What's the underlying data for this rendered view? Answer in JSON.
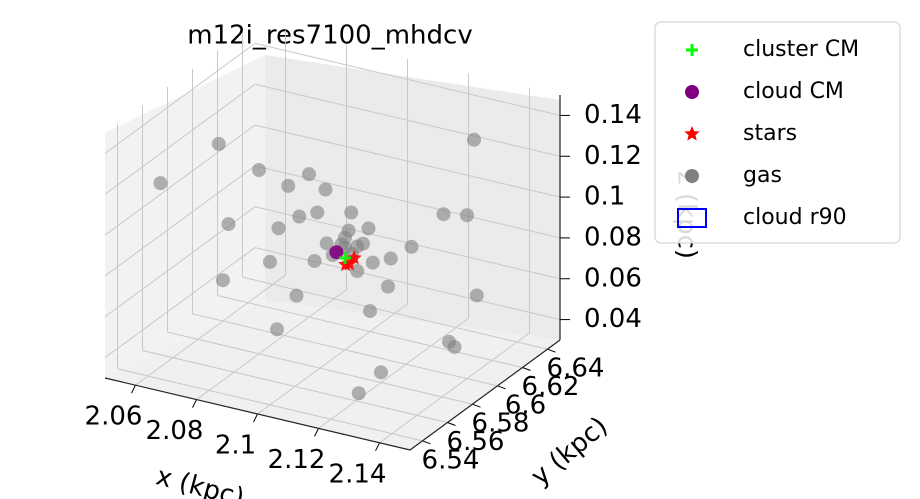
{
  "chart_data": {
    "type": "scatter3d",
    "title": "m12i_res7100_mhdcv",
    "xlabel": "x (kpc)",
    "ylabel": "y (kpc)",
    "zlabel": "z (kpc)",
    "xlim": [
      2.05,
      2.15
    ],
    "ylim": [
      6.53,
      6.65
    ],
    "zlim": [
      0.03,
      0.15
    ],
    "xticks": [
      2.06,
      2.08,
      2.1,
      2.12,
      2.14
    ],
    "yticks": [
      6.54,
      6.56,
      6.58,
      6.6,
      6.62,
      6.64
    ],
    "zticks": [
      0.04,
      0.06,
      0.08,
      0.1,
      0.12,
      0.14
    ],
    "grid": true,
    "legend": "upper right",
    "series": [
      {
        "name": "cluster CM",
        "color": "#00ff00",
        "marker": "plus",
        "x": [
          2.1
        ],
        "y": [
          6.6
        ],
        "z": [
          0.075
        ]
      },
      {
        "name": "cloud CM",
        "color": "#800080",
        "marker": "circle",
        "x": [
          2.098
        ],
        "y": [
          6.598
        ],
        "z": [
          0.078
        ]
      },
      {
        "name": "stars",
        "color": "#ff0000",
        "marker": "star",
        "x": [
          2.101,
          2.103,
          2.099
        ],
        "y": [
          6.601,
          6.6,
          6.603
        ],
        "z": [
          0.072,
          0.076,
          0.07
        ]
      },
      {
        "name": "gas",
        "color": "#808080",
        "marker": "circle",
        "x": [
          2.06,
          2.07,
          2.08,
          2.09,
          2.1,
          2.11,
          2.12,
          2.13,
          2.14,
          2.065,
          2.075,
          2.085,
          2.095,
          2.105,
          2.115,
          2.125,
          2.135,
          2.06,
          2.08,
          2.1,
          2.12,
          2.14,
          2.07,
          2.09,
          2.11,
          2.13,
          2.1,
          2.102,
          2.098,
          2.104,
          2.096,
          2.1,
          2.106,
          2.094,
          2.1,
          2.12,
          2.08,
          2.09,
          2.11,
          2.13
        ],
        "y": [
          6.55,
          6.58,
          6.62,
          6.6,
          6.6,
          6.61,
          6.57,
          6.63,
          6.59,
          6.64,
          6.56,
          6.6,
          6.59,
          6.61,
          6.6,
          6.55,
          6.62,
          6.6,
          6.58,
          6.54,
          6.63,
          6.6,
          6.62,
          6.57,
          6.59,
          6.61,
          6.6,
          6.598,
          6.602,
          6.6,
          6.6,
          6.605,
          6.595,
          6.6,
          6.62,
          6.58,
          6.61,
          6.63,
          6.56,
          6.58
        ],
        "z": [
          0.12,
          0.09,
          0.1,
          0.07,
          0.08,
          0.06,
          0.11,
          0.13,
          0.05,
          0.08,
          0.14,
          0.09,
          0.1,
          0.07,
          0.08,
          0.04,
          0.06,
          0.05,
          0.12,
          0.1,
          0.09,
          0.11,
          0.07,
          0.05,
          0.09,
          0.04,
          0.085,
          0.09,
          0.08,
          0.07,
          0.075,
          0.095,
          0.085,
          0.08,
          0.04,
          0.035,
          0.045,
          0.06,
          0.13,
          0.1
        ]
      },
      {
        "name": "cloud r90",
        "color": "#0000ff",
        "marker": "box"
      }
    ]
  }
}
